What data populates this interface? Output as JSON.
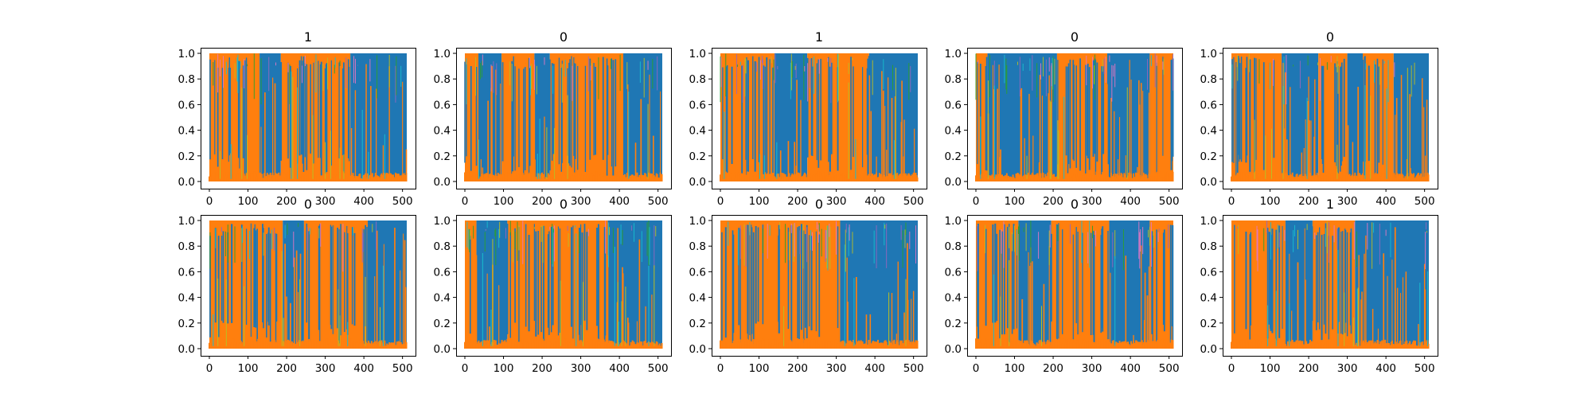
{
  "figure": {
    "grid": {
      "rows": 2,
      "cols": 5
    },
    "colors": {
      "series_a": "#1f77b4",
      "series_b": "#ff7f0e",
      "accent_1": "#17becf",
      "accent_2": "#bcbd22",
      "accent_3": "#9467bd",
      "accent_4": "#e377c2",
      "accent_5": "#2ca02c",
      "axes": "#000000",
      "background": "#ffffff"
    }
  },
  "chart_data": [
    {
      "type": "area",
      "title": "1",
      "xlim": [
        0,
        511
      ],
      "ylim": [
        0,
        1
      ],
      "xticks": [
        0,
        100,
        200,
        300,
        400,
        500
      ],
      "yticks": [
        "0.0",
        "0.2",
        "0.4",
        "0.6",
        "0.8",
        "1.0"
      ],
      "grid": false,
      "dominance_segments": [
        {
          "x": [
            0,
            130
          ],
          "dominant": "orange"
        },
        {
          "x": [
            130,
            185
          ],
          "dominant": "blue"
        },
        {
          "x": [
            185,
            365
          ],
          "dominant": "orange"
        },
        {
          "x": [
            365,
            511
          ],
          "dominant": "blue"
        }
      ]
    },
    {
      "type": "area",
      "title": "0",
      "xlim": [
        0,
        511
      ],
      "ylim": [
        0,
        1
      ],
      "xticks": [
        0,
        100,
        200,
        300,
        400,
        500
      ],
      "yticks": [
        "0.0",
        "0.2",
        "0.4",
        "0.6",
        "0.8",
        "1.0"
      ],
      "grid": false,
      "dominance_segments": [
        {
          "x": [
            0,
            35
          ],
          "dominant": "orange"
        },
        {
          "x": [
            35,
            95
          ],
          "dominant": "blue"
        },
        {
          "x": [
            95,
            180
          ],
          "dominant": "orange"
        },
        {
          "x": [
            180,
            220
          ],
          "dominant": "blue"
        },
        {
          "x": [
            220,
            410
          ],
          "dominant": "orange"
        },
        {
          "x": [
            410,
            511
          ],
          "dominant": "blue"
        }
      ]
    },
    {
      "type": "area",
      "title": "1",
      "xlim": [
        0,
        511
      ],
      "ylim": [
        0,
        1
      ],
      "xticks": [
        0,
        100,
        200,
        300,
        400,
        500
      ],
      "yticks": [
        "0.0",
        "0.2",
        "0.4",
        "0.6",
        "0.8",
        "1.0"
      ],
      "grid": false,
      "dominance_segments": [
        {
          "x": [
            0,
            140
          ],
          "dominant": "orange"
        },
        {
          "x": [
            140,
            225
          ],
          "dominant": "blue"
        },
        {
          "x": [
            225,
            385
          ],
          "dominant": "orange"
        },
        {
          "x": [
            385,
            511
          ],
          "dominant": "blue"
        }
      ]
    },
    {
      "type": "area",
      "title": "0",
      "xlim": [
        0,
        511
      ],
      "ylim": [
        0,
        1
      ],
      "xticks": [
        0,
        100,
        200,
        300,
        400,
        500
      ],
      "yticks": [
        "0.0",
        "0.2",
        "0.4",
        "0.6",
        "0.8",
        "1.0"
      ],
      "grid": false,
      "dominance_segments": [
        {
          "x": [
            0,
            30
          ],
          "dominant": "orange"
        },
        {
          "x": [
            30,
            210
          ],
          "dominant": "blue"
        },
        {
          "x": [
            210,
            340
          ],
          "dominant": "orange"
        },
        {
          "x": [
            340,
            450
          ],
          "dominant": "blue"
        },
        {
          "x": [
            450,
            511
          ],
          "dominant": "orange"
        }
      ]
    },
    {
      "type": "area",
      "title": "0",
      "xlim": [
        0,
        511
      ],
      "ylim": [
        0,
        1
      ],
      "xticks": [
        0,
        100,
        200,
        300,
        400,
        500
      ],
      "yticks": [
        "0.0",
        "0.2",
        "0.4",
        "0.6",
        "0.8",
        "1.0"
      ],
      "grid": false,
      "dominance_segments": [
        {
          "x": [
            0,
            130
          ],
          "dominant": "orange"
        },
        {
          "x": [
            130,
            225
          ],
          "dominant": "blue"
        },
        {
          "x": [
            225,
            300
          ],
          "dominant": "orange"
        },
        {
          "x": [
            300,
            340
          ],
          "dominant": "blue"
        },
        {
          "x": [
            340,
            420
          ],
          "dominant": "orange"
        },
        {
          "x": [
            420,
            511
          ],
          "dominant": "blue"
        }
      ]
    },
    {
      "type": "area",
      "title": "0",
      "xlim": [
        0,
        511
      ],
      "ylim": [
        0,
        1
      ],
      "xticks": [
        0,
        100,
        200,
        300,
        400,
        500
      ],
      "yticks": [
        "0.0",
        "0.2",
        "0.4",
        "0.6",
        "0.8",
        "1.0"
      ],
      "grid": false,
      "dominance_segments": [
        {
          "x": [
            0,
            190
          ],
          "dominant": "orange"
        },
        {
          "x": [
            190,
            245
          ],
          "dominant": "blue"
        },
        {
          "x": [
            245,
            410
          ],
          "dominant": "orange"
        },
        {
          "x": [
            410,
            511
          ],
          "dominant": "blue"
        }
      ]
    },
    {
      "type": "area",
      "title": "0",
      "xlim": [
        0,
        511
      ],
      "ylim": [
        0,
        1
      ],
      "xticks": [
        0,
        100,
        200,
        300,
        400,
        500
      ],
      "yticks": [
        "0.0",
        "0.2",
        "0.4",
        "0.6",
        "0.8",
        "1.0"
      ],
      "grid": false,
      "dominance_segments": [
        {
          "x": [
            0,
            30
          ],
          "dominant": "orange"
        },
        {
          "x": [
            30,
            110
          ],
          "dominant": "blue"
        },
        {
          "x": [
            110,
            370
          ],
          "dominant": "orange"
        },
        {
          "x": [
            370,
            511
          ],
          "dominant": "blue"
        }
      ]
    },
    {
      "type": "area",
      "title": "0",
      "xlim": [
        0,
        511
      ],
      "ylim": [
        0,
        1
      ],
      "xticks": [
        0,
        100,
        200,
        300,
        400,
        500
      ],
      "yticks": [
        "0.0",
        "0.2",
        "0.4",
        "0.6",
        "0.8",
        "1.0"
      ],
      "grid": false,
      "dominance_segments": [
        {
          "x": [
            0,
            310
          ],
          "dominant": "orange"
        },
        {
          "x": [
            310,
            511
          ],
          "dominant": "blue"
        }
      ]
    },
    {
      "type": "area",
      "title": "0",
      "xlim": [
        0,
        511
      ],
      "ylim": [
        0,
        1
      ],
      "xticks": [
        0,
        100,
        200,
        300,
        400,
        500
      ],
      "yticks": [
        "0.0",
        "0.2",
        "0.4",
        "0.6",
        "0.8",
        "1.0"
      ],
      "grid": false,
      "dominance_segments": [
        {
          "x": [
            0,
            110
          ],
          "dominant": "orange"
        },
        {
          "x": [
            110,
            195
          ],
          "dominant": "blue"
        },
        {
          "x": [
            195,
            345
          ],
          "dominant": "orange"
        },
        {
          "x": [
            345,
            450
          ],
          "dominant": "blue"
        },
        {
          "x": [
            450,
            511
          ],
          "dominant": "orange"
        }
      ]
    },
    {
      "type": "area",
      "title": "1",
      "xlim": [
        0,
        511
      ],
      "ylim": [
        0,
        1
      ],
      "xticks": [
        0,
        100,
        200,
        300,
        400,
        500
      ],
      "yticks": [
        "0.0",
        "0.2",
        "0.4",
        "0.6",
        "0.8",
        "1.0"
      ],
      "grid": false,
      "dominance_segments": [
        {
          "x": [
            0,
            140
          ],
          "dominant": "orange"
        },
        {
          "x": [
            140,
            210
          ],
          "dominant": "blue"
        },
        {
          "x": [
            210,
            320
          ],
          "dominant": "orange"
        },
        {
          "x": [
            320,
            511
          ],
          "dominant": "blue"
        }
      ]
    }
  ]
}
